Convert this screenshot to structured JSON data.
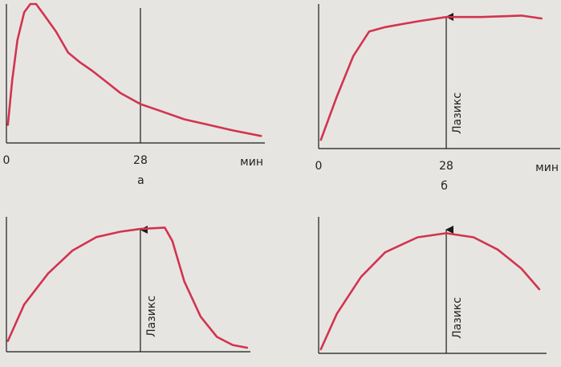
{
  "chart_data": [
    {
      "type": "line",
      "caption": "а",
      "x_label": "мин",
      "xlim": [
        0,
        54
      ],
      "xticks": [
        0,
        28
      ],
      "ylim": [
        0,
        100
      ],
      "series": [
        {
          "color": "#d1344f",
          "x": [
            0.3,
            1.2,
            2.3,
            3.7,
            5.0,
            6.2,
            7.9,
            10.4,
            12.9,
            15.4,
            17.9,
            20.5,
            23.8,
            28,
            32.2,
            37.2,
            42.3,
            47.3,
            53.2
          ],
          "values": [
            13,
            45,
            74,
            94,
            100,
            100,
            92,
            80,
            65,
            58,
            52,
            45,
            36,
            28,
            23,
            17,
            13,
            9,
            5
          ]
        }
      ]
    },
    {
      "type": "line",
      "caption": "б",
      "x_label": "мин",
      "xlim": [
        0,
        53
      ],
      "xticks": [
        0,
        28
      ],
      "ylim": [
        0,
        100
      ],
      "event_x": 28,
      "event_label": "Лазикс",
      "series": [
        {
          "color": "#d1344f",
          "x": [
            0.5,
            4.0,
            7.6,
            11.1,
            14.6,
            21.7,
            28,
            35.7,
            44.5,
            48.9
          ],
          "values": [
            6,
            36,
            64,
            81,
            84,
            88,
            91,
            91,
            92,
            90
          ]
        }
      ]
    },
    {
      "type": "line",
      "xlim": [
        0,
        51
      ],
      "ylim": [
        0,
        100
      ],
      "event_x": 28,
      "event_label": "Лазикс",
      "series": [
        {
          "color": "#d1344f",
          "x": [
            0.3,
            3.7,
            8.7,
            13.8,
            18.8,
            23.8,
            28,
            33.1,
            34.7,
            37.2,
            40.6,
            44.0,
            47.3,
            50.3
          ],
          "values": [
            8,
            35,
            58,
            75,
            85,
            89,
            91,
            92,
            82,
            52,
            26,
            11,
            5,
            3
          ]
        }
      ]
    },
    {
      "type": "line",
      "xlim": [
        0,
        50
      ],
      "ylim": [
        0,
        100
      ],
      "event_x": 28,
      "event_label": "Лазикс",
      "series": [
        {
          "color": "#d1344f",
          "x": [
            0.5,
            4.0,
            9.3,
            14.6,
            21.7,
            28,
            34.0,
            39.3,
            44.5,
            48.4
          ],
          "values": [
            3,
            29,
            56,
            74,
            85,
            88,
            85,
            76,
            62,
            47
          ]
        }
      ]
    }
  ]
}
